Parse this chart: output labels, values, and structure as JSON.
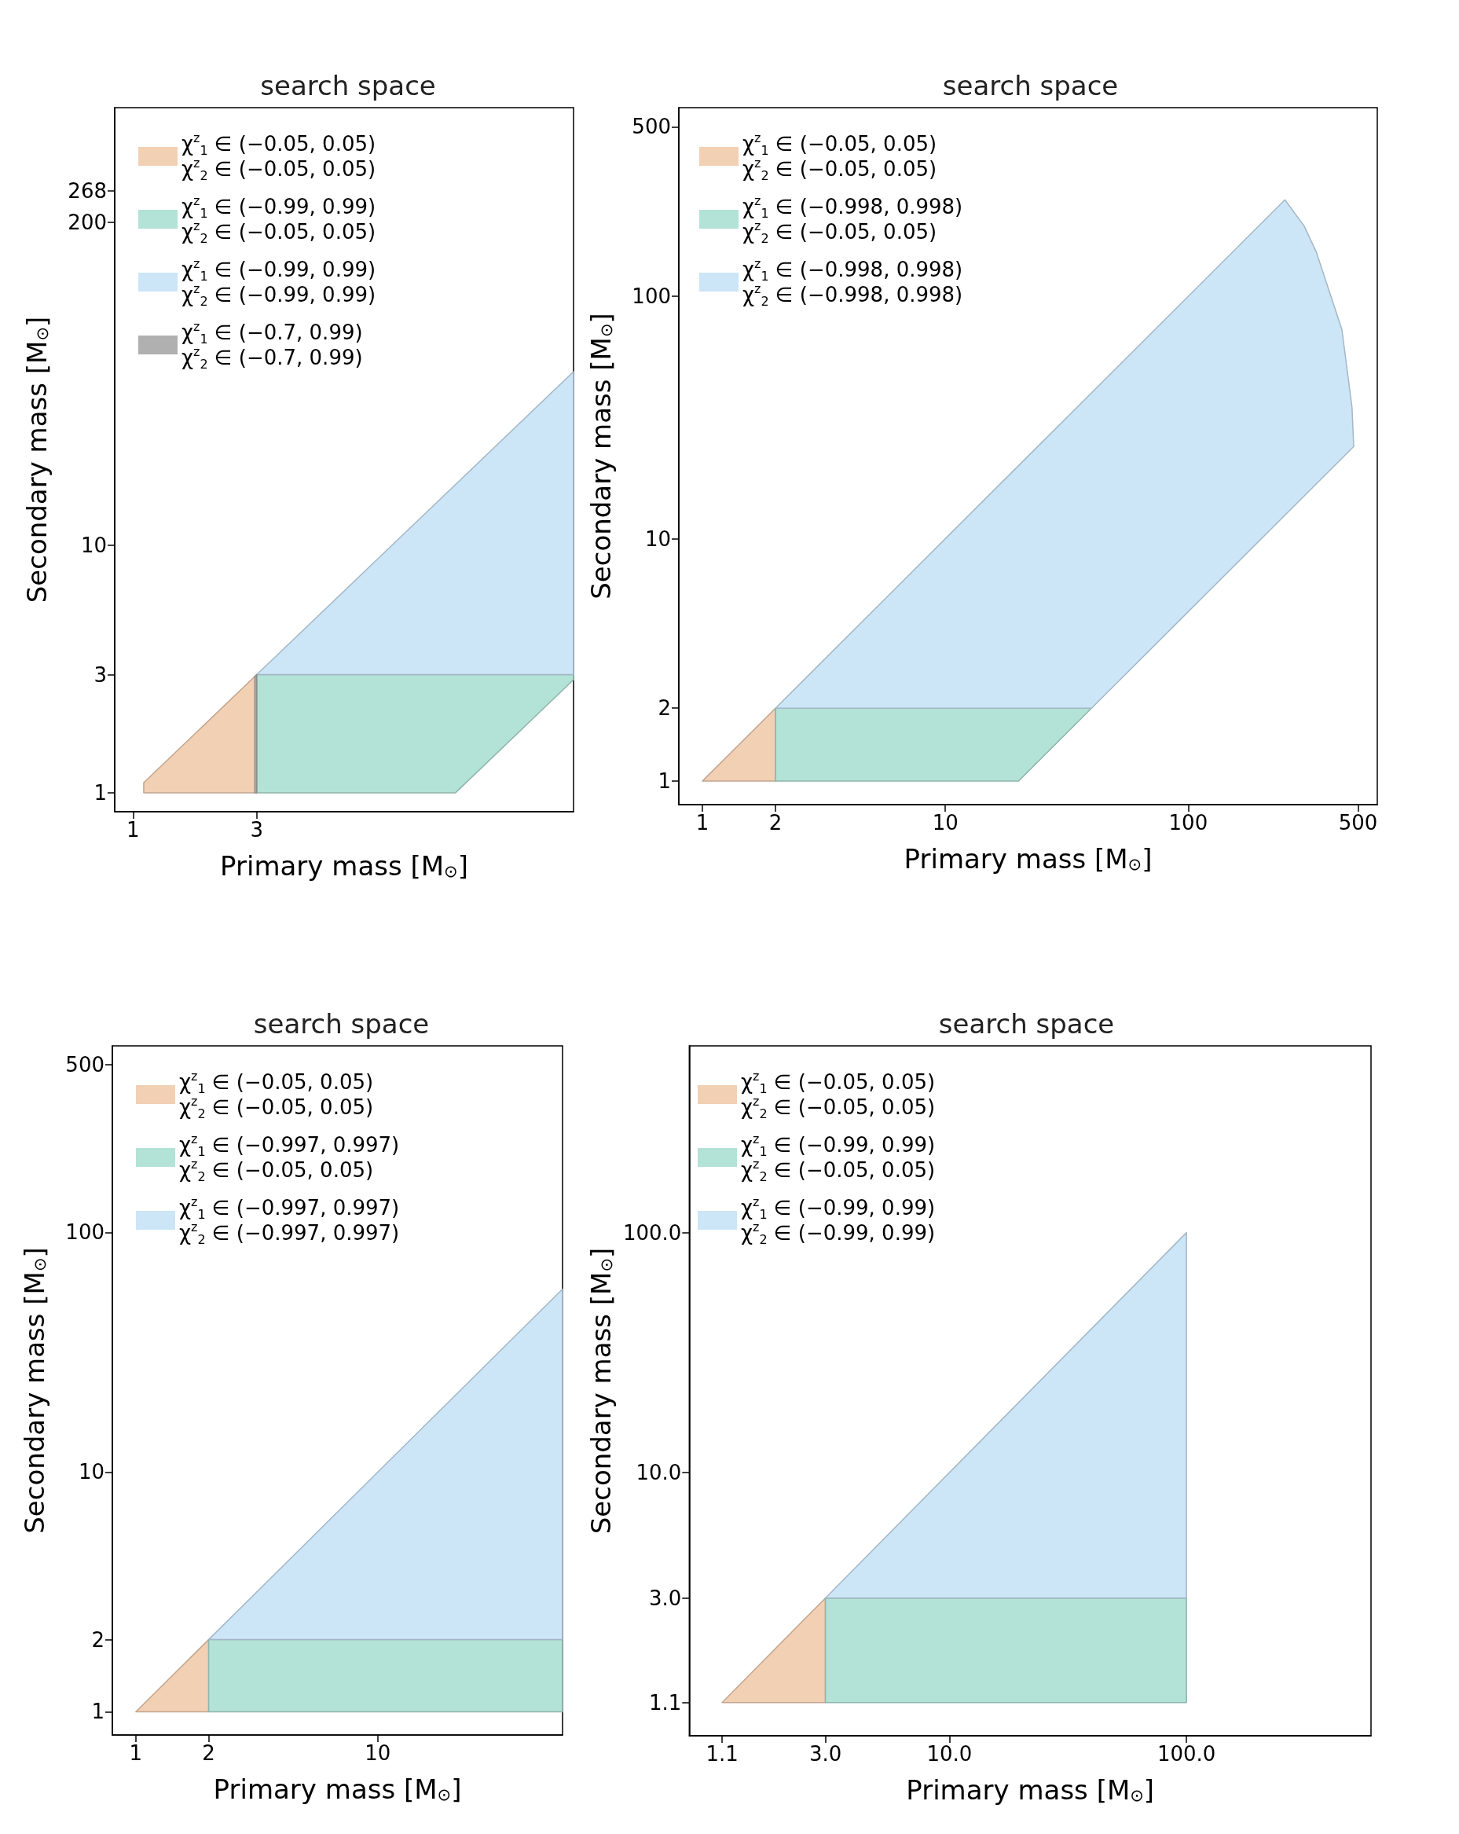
{
  "chart_data": [
    {
      "type": "area",
      "title": "search space",
      "xlabel": "Primary mass [M$_{⊙}$]",
      "ylabel": "Secondary mass [M$_{⊙}$]",
      "log": "xy",
      "legend": "top left",
      "xlim": [
        0.85,
        50
      ],
      "ylim": [
        0.84,
        580
      ],
      "xticks": [
        1,
        3
      ],
      "yticks": [
        1,
        3,
        10,
        200,
        268
      ],
      "series": [
        {
          "name": "χ$^{z}$$_{1}$ ∈ (−0.05, 0.05)\nχ$^{z}$$_{2}$ ∈ (−0.05, 0.05)",
          "color": "#f2d0b4",
          "x": [
            1.1,
            1.1,
            3,
            3
          ],
          "values": [
            1,
            1.1,
            3,
            1
          ]
        },
        {
          "name": "χ$^{z}$$_{1}$ ∈ (−0.99, 0.99)\nχ$^{z}$$_{2}$ ∈ (−0.05, 0.05)",
          "color": "#b3e2d6",
          "x": [
            3,
            17.5,
            50,
            50,
            3
          ],
          "values": [
            1,
            1,
            2.86,
            3,
            3
          ]
        },
        {
          "name": "χ$^{z}$$_{1}$ ∈ (−0.99, 0.99)\nχ$^{z}$$_{2}$ ∈ (−0.99, 0.99)",
          "color": "#cce5f7",
          "x": [
            3,
            50,
            50
          ],
          "values": [
            3,
            50,
            3
          ]
        },
        {
          "name": "χ$^{z}$$_{1}$ ∈ (−0.7, 0.99)\nχ$^{z}$$_{2}$ ∈ (−0.7, 0.99)",
          "color": "#b0b0b0",
          "x": [
            2.95,
            2.95,
            3,
            3
          ],
          "values": [
            1,
            2.95,
            3,
            1
          ]
        }
      ]
    },
    {
      "type": "area",
      "title": "search space",
      "xlabel": "Primary mass [M$_{⊙}$]",
      "ylabel": "Secondary mass [M$_{⊙}$]",
      "log": "xy",
      "legend": "top left",
      "xlim": [
        0.8,
        600
      ],
      "ylim": [
        0.8,
        600
      ],
      "xticks": [
        1,
        2,
        10,
        100,
        500
      ],
      "yticks": [
        1,
        2,
        10,
        100,
        500
      ],
      "series": [
        {
          "name": "χ$^{z}$$_{1}$ ∈ (−0.05, 0.05)\nχ$^{z}$$_{2}$ ∈ (−0.05, 0.05)",
          "color": "#f2d0b4",
          "x": [
            1,
            2,
            2
          ],
          "values": [
            1,
            2,
            1
          ]
        },
        {
          "name": "χ$^{z}$$_{1}$ ∈ (−0.998, 0.998)\nχ$^{z}$$_{2}$ ∈ (−0.05, 0.05)",
          "color": "#b3e2d6",
          "x": [
            2,
            20,
            40,
            2
          ],
          "values": [
            1,
            1,
            2,
            2
          ]
        },
        {
          "name": "χ$^{z}$$_{1}$ ∈ (−0.998, 0.998)\nχ$^{z}$$_{2}$ ∈ (−0.998, 0.998)",
          "color": "#cce5f7",
          "x": [
            2,
            40,
            480,
            472,
            429,
            336,
            300,
            250
          ],
          "values": [
            2,
            2,
            24,
            35,
            73,
            153,
            195,
            250
          ]
        }
      ]
    },
    {
      "type": "area",
      "title": "search space",
      "xlabel": "Primary mass [M$_{⊙}$]",
      "ylabel": "Secondary mass [M$_{⊙}$]",
      "log": "xy",
      "legend": "top left",
      "xlim": [
        0.8,
        58
      ],
      "ylim": [
        0.8,
        600
      ],
      "xticks": [
        1,
        2,
        10
      ],
      "yticks": [
        1,
        2,
        10,
        100,
        500
      ],
      "series": [
        {
          "name": "χ$^{z}$$_{1}$ ∈ (−0.05, 0.05)\nχ$^{z}$$_{2}$ ∈ (−0.05, 0.05)",
          "color": "#f2d0b4",
          "x": [
            1,
            2,
            2
          ],
          "values": [
            1,
            2,
            1
          ]
        },
        {
          "name": "χ$^{z}$$_{1}$ ∈ (−0.997, 0.997)\nχ$^{z}$$_{2}$ ∈ (−0.05, 0.05)",
          "color": "#b3e2d6",
          "x": [
            2,
            58,
            58,
            2
          ],
          "values": [
            1,
            1,
            2,
            2
          ]
        },
        {
          "name": "χ$^{z}$$_{1}$ ∈ (−0.997, 0.997)\nχ$^{z}$$_{2}$ ∈ (−0.997, 0.997)",
          "color": "#cce5f7",
          "x": [
            2,
            58,
            58
          ],
          "values": [
            2,
            58,
            2
          ]
        }
      ]
    },
    {
      "type": "area",
      "title": "search space",
      "xlabel": "Primary mass [M$_{⊙}$]",
      "ylabel": "Secondary mass [M$_{⊙}$]",
      "log": "xy",
      "legend": "top left",
      "xlim": [
        0.8,
        600
      ],
      "ylim": [
        0.8,
        600
      ],
      "xticks": [
        {
          "value": 1.1,
          "label": "1.1"
        },
        {
          "value": 3,
          "label": "3.0"
        },
        {
          "value": 10,
          "label": "10.0"
        },
        {
          "value": 100,
          "label": "100.0"
        }
      ],
      "yticks": [
        {
          "value": 1.1,
          "label": "1.1"
        },
        {
          "value": 3,
          "label": "3.0"
        },
        {
          "value": 10,
          "label": "10.0"
        },
        {
          "value": 100,
          "label": "100.0"
        }
      ],
      "series": [
        {
          "name": "χ$^{z}$$_{1}$ ∈ (−0.05, 0.05)\nχ$^{z}$$_{2}$ ∈ (−0.05, 0.05)",
          "color": "#f2d0b4",
          "x": [
            1.1,
            3,
            3
          ],
          "values": [
            1.1,
            3,
            1.1
          ]
        },
        {
          "name": "χ$^{z}$$_{1}$ ∈ (−0.99, 0.99)\nχ$^{z}$$_{2}$ ∈ (−0.05, 0.05)",
          "color": "#b3e2d6",
          "x": [
            3,
            100,
            100,
            3
          ],
          "values": [
            1.1,
            1.1,
            3,
            3
          ]
        },
        {
          "name": "χ$^{z}$$_{1}$ ∈ (−0.99, 0.99)\nχ$^{z}$$_{2}$ ∈ (−0.99, 0.99)",
          "color": "#cce5f7",
          "x": [
            3,
            100,
            100
          ],
          "values": [
            3,
            100,
            3
          ]
        }
      ]
    }
  ]
}
